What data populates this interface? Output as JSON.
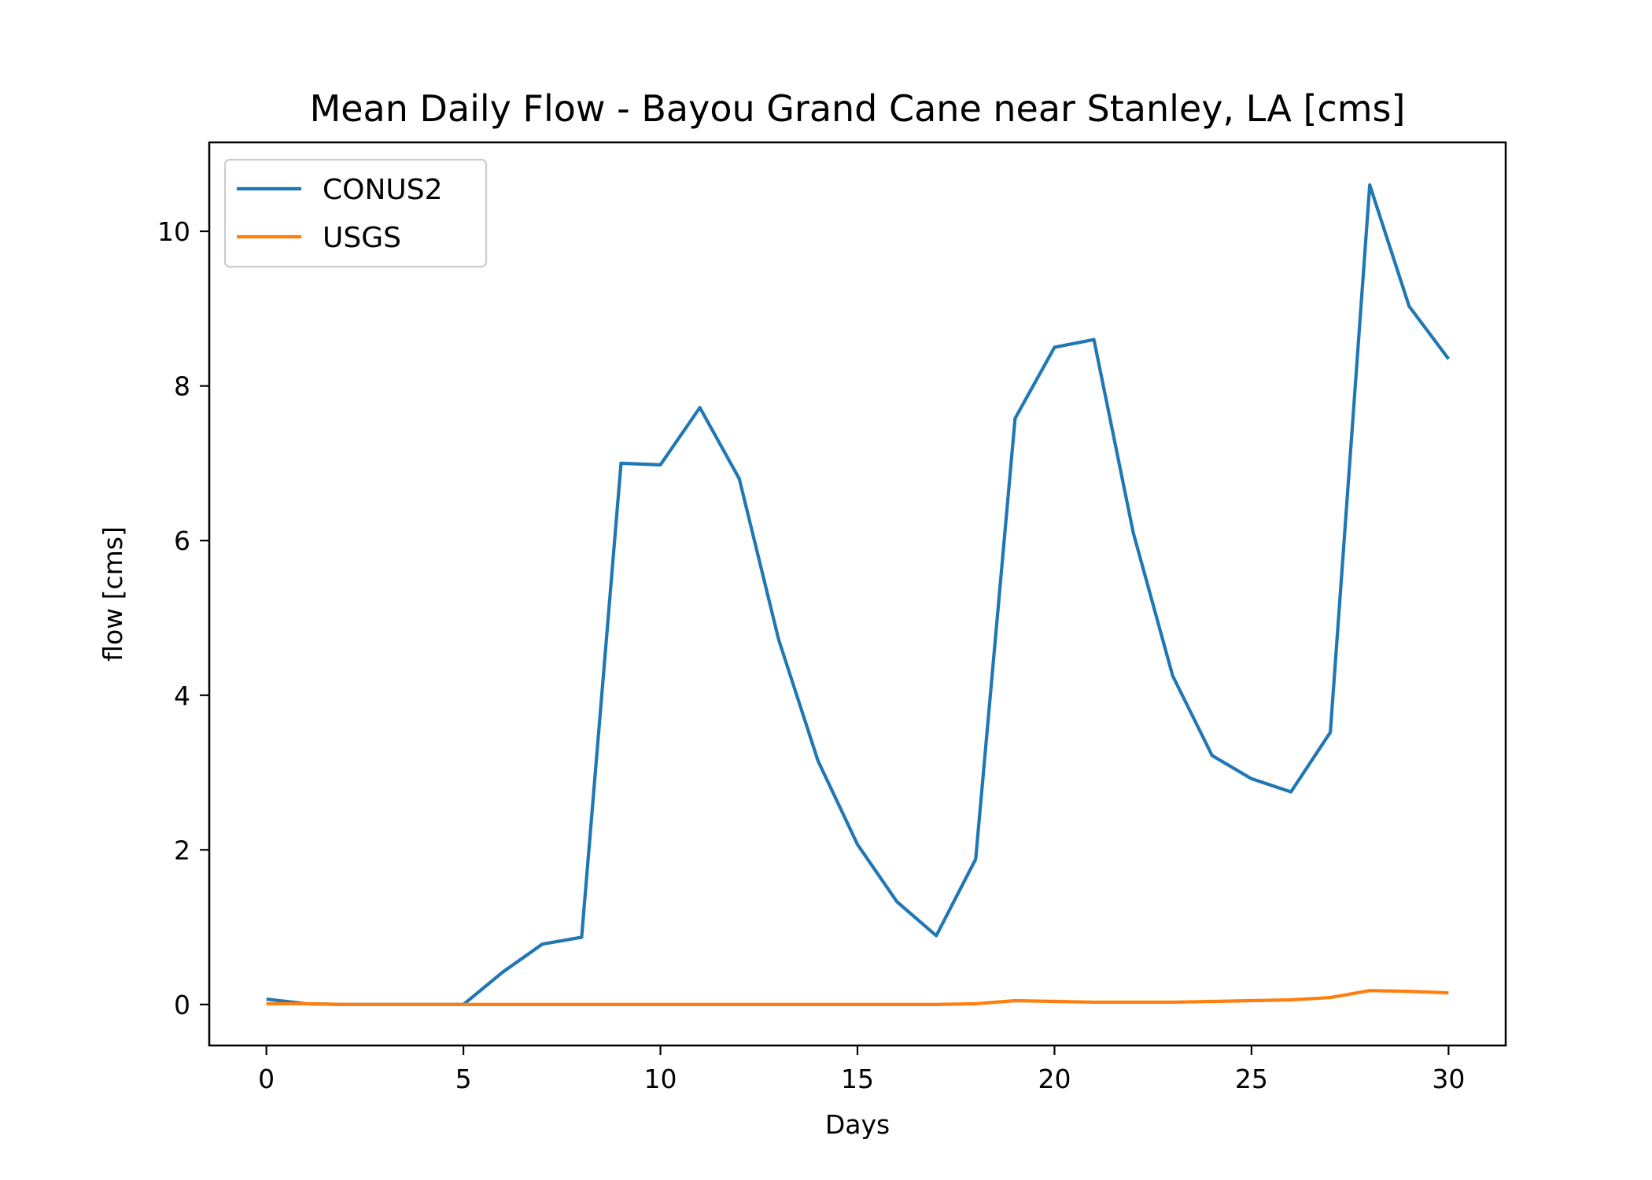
{
  "chart_data": {
    "type": "line",
    "title": "Mean Daily Flow - Bayou Grand Cane near Stanley, LA [cms]",
    "xlabel": "Days",
    "ylabel": "flow [cms]",
    "xlim": [
      -1.45,
      31.45
    ],
    "ylim": [
      -0.53,
      11.15
    ],
    "xticks": [
      0,
      5,
      10,
      15,
      20,
      25,
      30
    ],
    "yticks": [
      0,
      2,
      4,
      6,
      8,
      10
    ],
    "grid": false,
    "legend_position": "upper-left",
    "x": [
      0,
      1,
      2,
      3,
      4,
      5,
      6,
      7,
      8,
      9,
      10,
      11,
      12,
      13,
      14,
      15,
      16,
      17,
      18,
      19,
      20,
      21,
      22,
      23,
      24,
      25,
      26,
      27,
      28,
      29,
      30
    ],
    "series": [
      {
        "name": "CONUS2",
        "color": "#1f77b4",
        "values": [
          0.07,
          0.01,
          0.0,
          0.0,
          0.0,
          0.0,
          0.42,
          0.78,
          0.87,
          7.0,
          6.98,
          7.72,
          6.8,
          4.72,
          3.15,
          2.07,
          1.33,
          0.89,
          1.88,
          7.58,
          8.5,
          8.6,
          6.1,
          4.25,
          3.22,
          2.92,
          2.75,
          3.52,
          10.6,
          9.03,
          8.35
        ]
      },
      {
        "name": "USGS",
        "color": "#ff7f0e",
        "values": [
          0.01,
          0.01,
          0.0,
          0.0,
          0.0,
          0.0,
          0.0,
          0.0,
          0.0,
          0.0,
          0.0,
          0.0,
          0.0,
          0.0,
          0.0,
          0.0,
          0.0,
          0.0,
          0.01,
          0.05,
          0.04,
          0.03,
          0.03,
          0.03,
          0.04,
          0.05,
          0.06,
          0.09,
          0.18,
          0.17,
          0.15
        ]
      }
    ]
  }
}
